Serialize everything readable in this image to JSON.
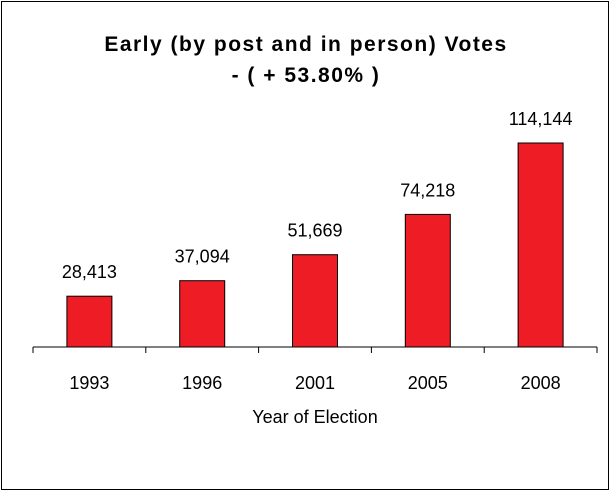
{
  "chart_data": {
    "type": "bar",
    "title": "Early (by post and in person)  Votes",
    "subtitle": "- ( + 53.80% )",
    "xlabel": "Year of Election",
    "ylabel": "",
    "categories": [
      "1993",
      "1996",
      "2001",
      "2005",
      "2008"
    ],
    "values": [
      28413,
      37094,
      51669,
      74218,
      114144
    ],
    "value_labels": [
      "28,413",
      "37,094",
      "51,669",
      "74,218",
      "114,144"
    ],
    "ylim": [
      0,
      120000
    ],
    "grid": false,
    "legend": "none",
    "bar_color": "#ee1c24",
    "bar_edge_color": "#000000"
  }
}
